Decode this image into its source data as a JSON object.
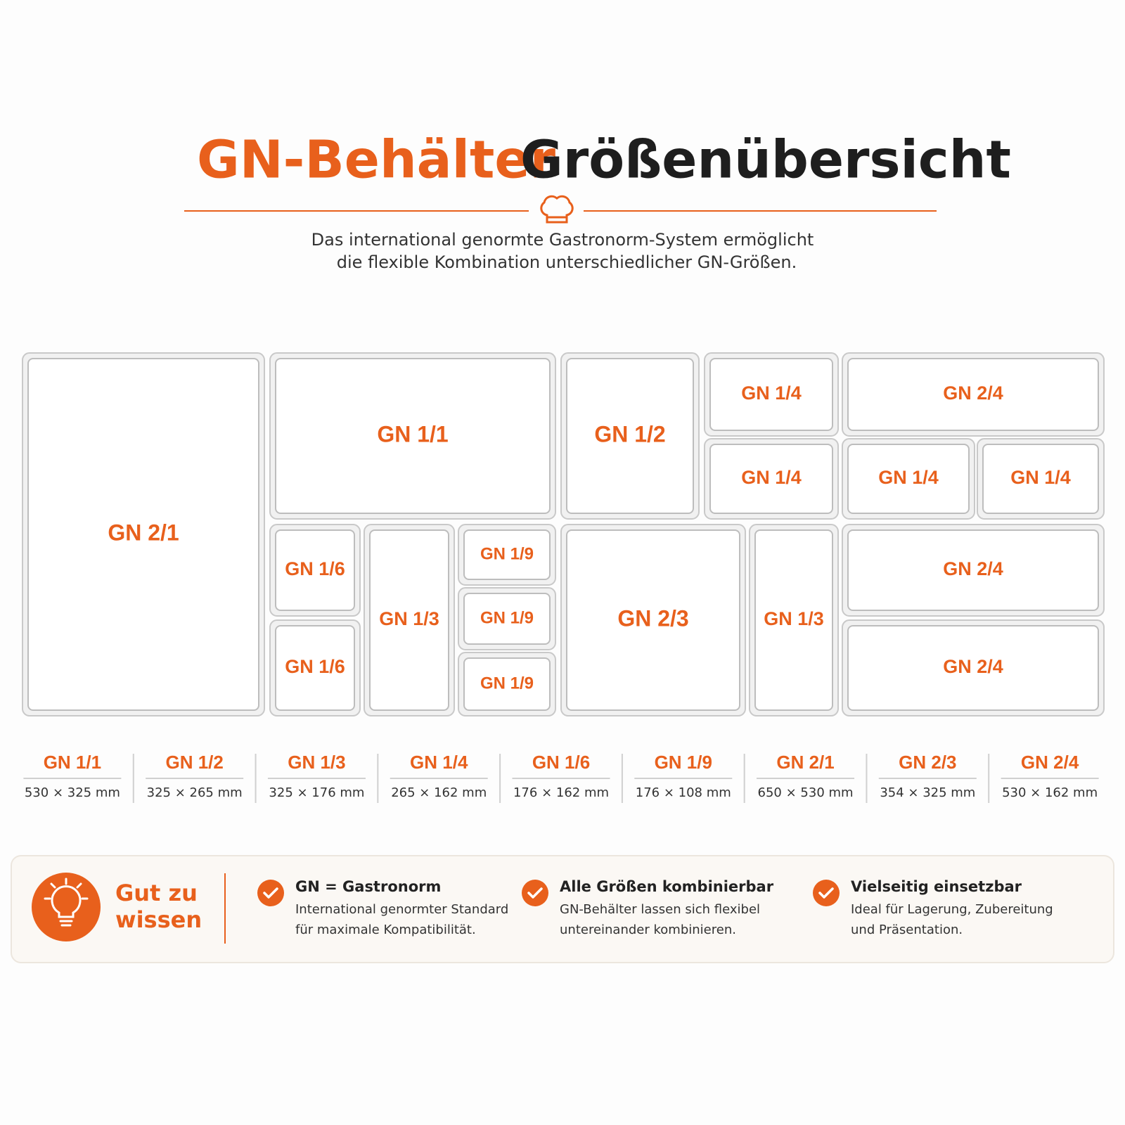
{
  "title": {
    "part1": "GN-Behälter",
    "part2": "Größenübersicht"
  },
  "subtitle": [
    "Das international genormte Gastronorm-System ermöglicht",
    "die flexible Kombination unterschiedlicher GN-Größen."
  ],
  "containers": [
    "GN 2/1",
    "GN 1/1",
    "GN 1/2",
    "GN 1/4",
    "GN 2/4",
    "GN 1/4",
    "GN 1/4",
    "GN 1/4",
    "GN 1/6",
    "GN 1/6",
    "GN 1/3",
    "GN 1/9",
    "GN 1/9",
    "GN 1/9",
    "GN 2/3",
    "GN 1/3",
    "GN 2/4",
    "GN 2/4"
  ],
  "sizes": [
    {
      "name": "GN 1/1",
      "dims": "530 × 325 mm"
    },
    {
      "name": "GN 1/2",
      "dims": "325 × 265 mm"
    },
    {
      "name": "GN 1/3",
      "dims": "325 × 176 mm"
    },
    {
      "name": "GN 1/4",
      "dims": "265 × 162 mm"
    },
    {
      "name": "GN 1/6",
      "dims": "176 × 162 mm"
    },
    {
      "name": "GN 1/9",
      "dims": "176 × 108 mm"
    },
    {
      "name": "GN 2/1",
      "dims": "650 × 530 mm"
    },
    {
      "name": "GN 2/3",
      "dims": "354 × 325 mm"
    },
    {
      "name": "GN 2/4",
      "dims": "530 × 162 mm"
    }
  ],
  "info": {
    "heading": [
      "Gut zu",
      "wissen"
    ],
    "items": [
      {
        "title": "GN = Gastronorm",
        "lines": [
          "International genormter Standard",
          "für maximale Kompatibilität."
        ]
      },
      {
        "title": "Alle Größen kombinierbar",
        "lines": [
          "GN-Behälter lassen sich flexibel",
          "untereinander kombinieren."
        ]
      },
      {
        "title": "Vielseitig einsetzbar",
        "lines": [
          "Ideal für Lagerung, Zubereitung",
          "und Präsentation."
        ]
      }
    ]
  }
}
